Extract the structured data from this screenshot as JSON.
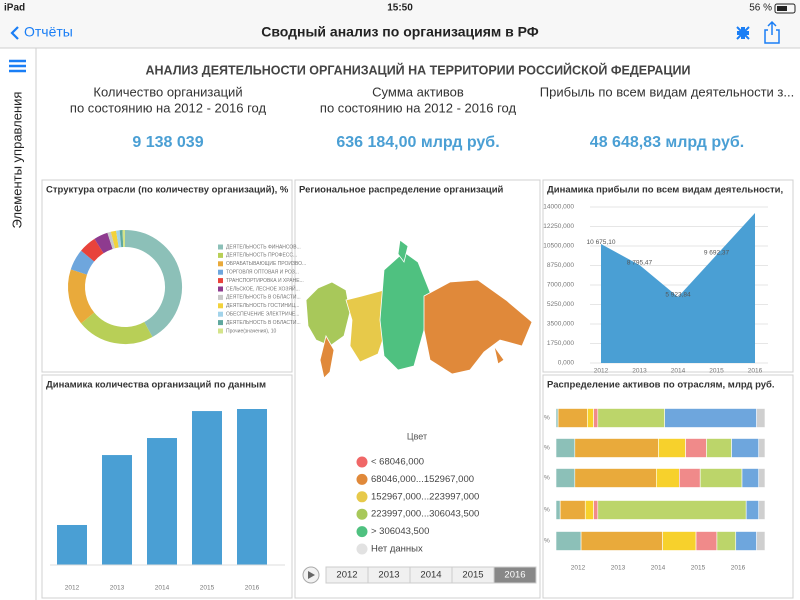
{
  "status_bar": {
    "device": "iPad",
    "time": "15:50",
    "battery": "56 %"
  },
  "nav_bar": {
    "back": "Отчёты",
    "title": "Сводный анализ по организациям в РФ"
  },
  "sidebar": {
    "label": "Элементы управления"
  },
  "dashboard": {
    "title": "АНАЛИЗ ДЕЯТЕЛЬНОСТИ ОРГАНИЗАЦИЙ НА ТЕРРИТОРИИ РОССИЙСКОЙ ФЕДЕРАЦИИ",
    "kpis": [
      {
        "label": [
          "Количество организаций",
          "по состоянию на 2012 - 2016 год"
        ],
        "value": "9 138 039"
      },
      {
        "label": [
          "Сумма активов",
          "по состоянию на 2012 - 2016 год"
        ],
        "value": "636 184,00 млрд руб."
      },
      {
        "label": [
          "Прибыль по всем видам деятельности з..."
        ],
        "value": "48 648,83 млрд руб."
      }
    ]
  },
  "structure_chart": {
    "type": "donut",
    "title": "Структура отрасли (по количеству организаций), %",
    "categories": [
      "ДЕЯТЕЛЬНОСТЬ ФИНАНСОВ...",
      "ДЕЯТЕЛЬНОСТЬ ПРОФЕСС...",
      "ОБРАБАТЫВАЮЩИЕ ПРОИЗВО...",
      "ТОРГОВЛЯ ОПТОВАЯ И РОЗ...",
      "ТРАНСПОРТИРОВКА И ХРАНЕ...",
      "СЕЛЬСКОЕ, ЛЕСНОЕ ХОЗЯЙ...",
      "ДЕЯТЕЛЬНОСТЬ В ОБЛАСТИ...",
      "ДЕЯТЕЛЬНОСТЬ ГОСТИНИЦ...",
      "ОБЕСПЕЧЕНИЕ ЭЛЕКТРИЧЕ...",
      "ДЕЯТЕЛЬНОСТЬ В ОБЛАСТИ...",
      "Прочие(значения), 10"
    ],
    "colors": [
      "#8cc0b8",
      "#b8cf57",
      "#e9aa3b",
      "#6ea6dd",
      "#e8433b",
      "#8e3b8f",
      "#c9c9c9",
      "#f2d23c",
      "#a2d3ea",
      "#5fa89e",
      "#d4e48a"
    ],
    "values": [
      42,
      22,
      16,
      6,
      5,
      4,
      1,
      1.5,
      1,
      0.8,
      0.7
    ]
  },
  "map_panel": {
    "title": "Региональное распределение организаций",
    "legend_title": "Цвет",
    "legend": [
      {
        "label": "< 68046,000",
        "color": "#f06767"
      },
      {
        "label": "68046,000...152967,000",
        "color": "#e0893a"
      },
      {
        "label": "152967,000...223997,000",
        "color": "#e7c94a"
      },
      {
        "label": "223997,000...306043,500",
        "color": "#a8c85a"
      },
      {
        "label": "> 306043,500",
        "color": "#4fc180"
      },
      {
        "label": "Нет данных",
        "color": "#e2e2e2"
      }
    ],
    "timeline": [
      "2012",
      "2013",
      "2014",
      "2015",
      "2016"
    ],
    "selected_index": 4
  },
  "profit_chart": {
    "type": "area",
    "title": "Динамика прибыли по всем видам деятельности,",
    "categories": [
      "2012",
      "2013",
      "2014",
      "2015",
      "2016"
    ],
    "values": [
      10675.1,
      8795.47,
      5923.84,
      9692.37,
      13461
    ],
    "value_labels": [
      "10 675,10",
      "8 795,47",
      "5 923,84",
      "9 692,37",
      null
    ],
    "color": "#4a9fd4",
    "ylim": [
      0,
      14000
    ],
    "yticks": [
      {
        "value": 0,
        "label": "0,000"
      },
      {
        "value": 1750,
        "label": "1750,000"
      },
      {
        "value": 3500,
        "label": "3500,000"
      },
      {
        "value": 5250,
        "label": "5250,000"
      },
      {
        "value": 7000,
        "label": "7000,000"
      },
      {
        "value": 8750,
        "label": "8750,000"
      },
      {
        "value": 10500,
        "label": "10500,000"
      },
      {
        "value": 12250,
        "label": "12250,000"
      },
      {
        "value": 14000,
        "label": "14000,000"
      }
    ],
    "grid": true
  },
  "count_chart": {
    "type": "bar",
    "title": "Динамика количества организаций по данным",
    "categories": [
      "2012",
      "2013",
      "2014",
      "2015",
      "2016"
    ],
    "values": [
      623000,
      1712000,
      1977000,
      2397000,
      2429000
    ],
    "color": "#4a9fd4"
  },
  "assets_chart": {
    "type": "stacked_hbar",
    "title": "Распределение активов по отраслям, млрд руб.",
    "categories": [
      "2012",
      "2013",
      "2014",
      "2015",
      "2016"
    ],
    "row_label": "%",
    "xlim": [
      0,
      100
    ],
    "series": [
      {
        "color": "#8cc0b8",
        "values": [
          1,
          9,
          9,
          2,
          12
        ]
      },
      {
        "color": "#e9aa3b",
        "values": [
          14,
          40,
          39,
          12,
          39
        ]
      },
      {
        "color": "#f7d12c",
        "values": [
          3,
          13,
          11,
          4,
          16
        ]
      },
      {
        "color": "#f08a8a",
        "values": [
          2,
          10,
          10,
          2,
          10
        ]
      },
      {
        "color": "#bcd56a",
        "values": [
          32,
          12,
          20,
          71,
          9
        ]
      },
      {
        "color": "#6ea6dd",
        "values": [
          44,
          13,
          8,
          6,
          10
        ]
      },
      {
        "color": "#cfcfcf",
        "values": [
          4,
          3,
          3,
          3,
          4
        ]
      }
    ]
  }
}
